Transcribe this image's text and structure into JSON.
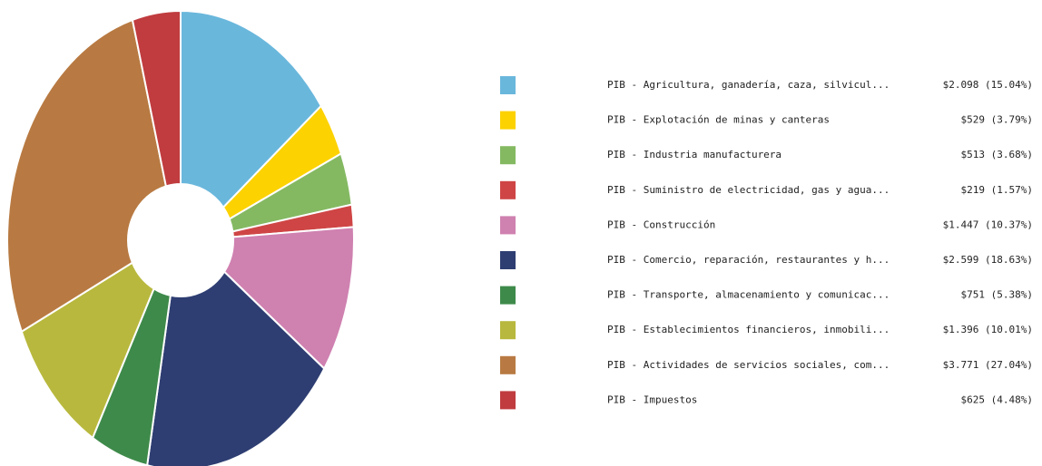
{
  "chart_data": {
    "type": "donut",
    "categories": [
      "PIB - Agricultura, ganadería, caza, silvicul...",
      "PIB - Explotación de minas y canteras",
      "PIB - Industria manufacturera",
      "PIB - Suministro de electricidad, gas y agua...",
      "PIB - Construcción",
      "PIB - Comercio, reparación, restaurantes y h...",
      "PIB - Transporte, almacenamiento y comunicac...",
      "PIB - Establecimientos financieros, inmobili...",
      "PIB - Actividades de servicios sociales, com...",
      "PIB - Impuestos"
    ],
    "values": [
      2098,
      529,
      513,
      219,
      1447,
      2599,
      751,
      1396,
      3771,
      625
    ],
    "value_labels": [
      "$2.098 (15.04%)",
      "$529 (3.79%)",
      "$513 (3.68%)",
      "$219 (1.57%)",
      "$1.447 (10.37%)",
      "$2.599 (18.63%)",
      "$751 (5.38%)",
      "$1.396 (10.01%)",
      "$3.771 (27.04%)",
      "$625 (4.48%)"
    ],
    "colors": [
      "#6ab7dc",
      "#fcd200",
      "#84b962",
      "#cf4545",
      "#cf81b0",
      "#2e3e72",
      "#3e8a4a",
      "#b8b83e",
      "#b87a42",
      "#c03c3f"
    ]
  }
}
